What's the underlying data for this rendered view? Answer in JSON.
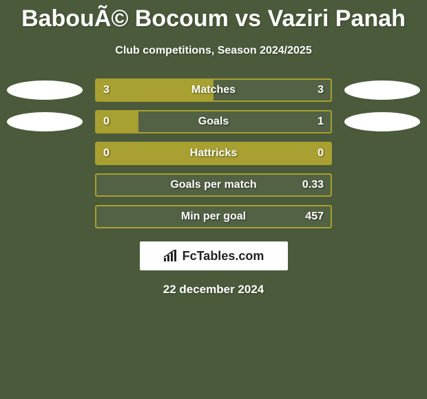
{
  "title": "BabouÃ© Bocoum vs Vaziri Panah",
  "subtitle": "Club competitions, Season 2024/2025",
  "stats": [
    {
      "label": "Matches",
      "left_value": "3",
      "right_value": "3",
      "fill_percent": 50,
      "show_left_ellipse": true,
      "show_right_ellipse": true
    },
    {
      "label": "Goals",
      "left_value": "0",
      "right_value": "1",
      "fill_percent": 18,
      "show_left_ellipse": true,
      "show_right_ellipse": true
    },
    {
      "label": "Hattricks",
      "left_value": "0",
      "right_value": "0",
      "fill_percent": 100,
      "show_left_ellipse": false,
      "show_right_ellipse": false
    },
    {
      "label": "Goals per match",
      "left_value": "",
      "right_value": "0.33",
      "fill_percent": 0,
      "show_left_ellipse": false,
      "show_right_ellipse": false
    },
    {
      "label": "Min per goal",
      "left_value": "",
      "right_value": "457",
      "fill_percent": 0,
      "show_left_ellipse": false,
      "show_right_ellipse": false
    }
  ],
  "logo_text": "FcTables.com",
  "date": "22 december 2024",
  "colors": {
    "background": "#4a5a3a",
    "bar_border": "#a8a030",
    "bar_fill": "#a8a030",
    "text": "#ffffff",
    "ellipse": "#ffffff",
    "logo_bg": "#ffffff",
    "logo_text": "#222222"
  }
}
